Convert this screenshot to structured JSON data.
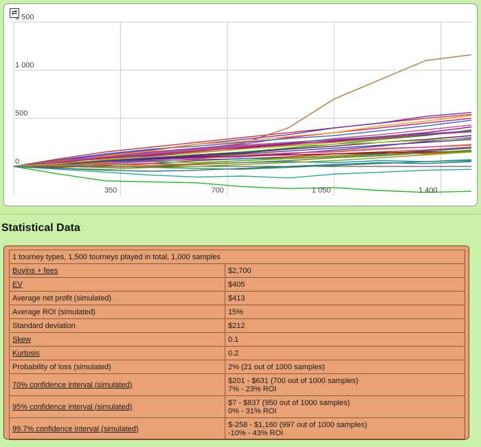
{
  "chart": {
    "refresh_icon": "refresh-icon",
    "refresh_glyph": "⇄"
  },
  "chart_data": {
    "type": "line",
    "title": "",
    "xlabel": "",
    "ylabel": "",
    "xlim": [
      0,
      1500
    ],
    "ylim": [
      -300,
      1500
    ],
    "x_ticks": [
      350,
      700,
      1050,
      1400
    ],
    "x_tick_labels": [
      "350",
      "700",
      "1 050",
      "1 400"
    ],
    "y_ticks": [
      0,
      500,
      1000,
      1500
    ],
    "y_tick_labels": [
      "0",
      "500",
      "1 000",
      "1 500"
    ],
    "grid": true,
    "x": [
      0,
      150,
      300,
      450,
      600,
      750,
      900,
      1050,
      1200,
      1350,
      1500
    ],
    "series": [
      {
        "color": "#b87333",
        "values": [
          0,
          30,
          70,
          120,
          180,
          240,
          400,
          700,
          900,
          1100,
          1160
        ]
      },
      {
        "color": "#22bb22",
        "values": [
          0,
          -80,
          -150,
          -160,
          -170,
          -210,
          -230,
          -220,
          -250,
          -270,
          -258
        ]
      },
      {
        "color": "#dd3333",
        "values": [
          0,
          80,
          150,
          200,
          250,
          300,
          350,
          400,
          450,
          500,
          540
        ]
      },
      {
        "color": "#6633cc",
        "values": [
          0,
          60,
          120,
          170,
          230,
          280,
          330,
          400,
          450,
          520,
          560
        ]
      },
      {
        "color": "#cc2299",
        "values": [
          0,
          50,
          100,
          150,
          190,
          230,
          300,
          350,
          400,
          450,
          500
        ]
      },
      {
        "color": "#3366cc",
        "values": [
          0,
          70,
          130,
          180,
          210,
          250,
          290,
          320,
          370,
          420,
          480
        ]
      },
      {
        "color": "#ff9900",
        "values": [
          0,
          40,
          110,
          160,
          230,
          260,
          310,
          350,
          420,
          470,
          530
        ]
      },
      {
        "color": "#109618",
        "values": [
          0,
          20,
          50,
          90,
          120,
          150,
          190,
          230,
          280,
          320,
          380
        ]
      },
      {
        "color": "#990099",
        "values": [
          0,
          30,
          60,
          110,
          140,
          190,
          230,
          270,
          310,
          350,
          410
        ]
      },
      {
        "color": "#0099c6",
        "values": [
          0,
          10,
          20,
          30,
          20,
          40,
          50,
          40,
          60,
          50,
          60
        ]
      },
      {
        "color": "#dd4477",
        "values": [
          0,
          60,
          100,
          130,
          170,
          210,
          240,
          290,
          330,
          380,
          430
        ]
      },
      {
        "color": "#66aa00",
        "values": [
          0,
          -20,
          -30,
          -10,
          0,
          20,
          40,
          60,
          90,
          120,
          150
        ]
      },
      {
        "color": "#b82e2e",
        "values": [
          0,
          -10,
          10,
          30,
          60,
          80,
          100,
          130,
          150,
          170,
          200
        ]
      },
      {
        "color": "#316395",
        "values": [
          0,
          20,
          40,
          60,
          70,
          80,
          90,
          110,
          130,
          160,
          190
        ]
      },
      {
        "color": "#22aa99",
        "values": [
          0,
          -30,
          -60,
          -90,
          -110,
          -100,
          -120,
          -80,
          -60,
          -40,
          -30
        ]
      },
      {
        "color": "#aaaa11",
        "values": [
          0,
          20,
          40,
          80,
          100,
          120,
          140,
          160,
          190,
          200,
          230
        ]
      },
      {
        "color": "#6633cc",
        "values": [
          0,
          30,
          50,
          70,
          90,
          100,
          130,
          170,
          210,
          260,
          300
        ]
      },
      {
        "color": "#e67300",
        "values": [
          0,
          10,
          20,
          10,
          30,
          60,
          90,
          110,
          140,
          130,
          160
        ]
      },
      {
        "color": "#8b0707",
        "values": [
          0,
          20,
          60,
          80,
          100,
          110,
          120,
          130,
          140,
          150,
          160
        ]
      },
      {
        "color": "#651067",
        "values": [
          0,
          40,
          60,
          80,
          120,
          140,
          180,
          210,
          250,
          280,
          320
        ]
      },
      {
        "color": "#329262",
        "values": [
          0,
          10,
          0,
          -10,
          -20,
          -30,
          -10,
          10,
          30,
          50,
          70
        ]
      },
      {
        "color": "#5574a6",
        "values": [
          0,
          50,
          90,
          140,
          180,
          220,
          250,
          280,
          310,
          340,
          370
        ]
      },
      {
        "color": "#3b3eac",
        "values": [
          0,
          30,
          60,
          90,
          110,
          130,
          160,
          190,
          220,
          250,
          280
        ]
      },
      {
        "color": "#b77322",
        "values": [
          0,
          50,
          80,
          120,
          150,
          180,
          220,
          250,
          290,
          330,
          360
        ]
      },
      {
        "color": "#16d620",
        "values": [
          0,
          10,
          30,
          50,
          40,
          60,
          80,
          100,
          120,
          140,
          170
        ]
      },
      {
        "color": "#b91383",
        "values": [
          0,
          40,
          90,
          120,
          160,
          200,
          240,
          260,
          300,
          330,
          360
        ]
      },
      {
        "color": "#f4359e",
        "values": [
          0,
          20,
          30,
          50,
          80,
          110,
          140,
          150,
          180,
          200,
          220
        ]
      },
      {
        "color": "#9c5935",
        "values": [
          0,
          0,
          -10,
          0,
          20,
          40,
          60,
          90,
          110,
          140,
          160
        ]
      },
      {
        "color": "#a9c413",
        "values": [
          0,
          30,
          70,
          100,
          140,
          180,
          210,
          230,
          250,
          270,
          290
        ]
      },
      {
        "color": "#2a778d",
        "values": [
          0,
          -20,
          -40,
          -50,
          -40,
          -20,
          0,
          20,
          40,
          30,
          50
        ]
      }
    ]
  },
  "stats": {
    "section_title": "Statistical Data",
    "summary": "1 tourney types, 1,500 tourneys played in total, 1,000 samples",
    "rows": [
      {
        "label": "Buyins + fees",
        "value": "$2,700",
        "value2": ""
      },
      {
        "label": "EV",
        "value": "$405",
        "value2": ""
      },
      {
        "label": "Average net profit (simulated)",
        "value": "$413",
        "value2": ""
      },
      {
        "label": "Average ROI (simulated)",
        "value": "15%",
        "value2": ""
      },
      {
        "label": "Standard deviation",
        "value": "$212",
        "value2": ""
      },
      {
        "label": "Skew",
        "value": "0.1",
        "value2": ""
      },
      {
        "label": "Kurtosis",
        "value": "0.2",
        "value2": ""
      },
      {
        "label": "Probability of loss (simulated)",
        "value": "2% (21 out of 1000 samples)",
        "value2": ""
      },
      {
        "label": "70% confidence interval (simulated)",
        "value": "$201 - $631 (700 out of 1000 samples)",
        "value2": "7% - 23% ROI"
      },
      {
        "label": "95% confidence interval (simulated)",
        "value": "$7 - $837 (950 out of 1000 samples)",
        "value2": "0% - 31% ROI"
      },
      {
        "label": "99.7% confidence interval (simulated)",
        "value": "$-258 - $1,160 (997 out of 1000 samples)",
        "value2": "-10% - 43% ROI"
      }
    ]
  }
}
